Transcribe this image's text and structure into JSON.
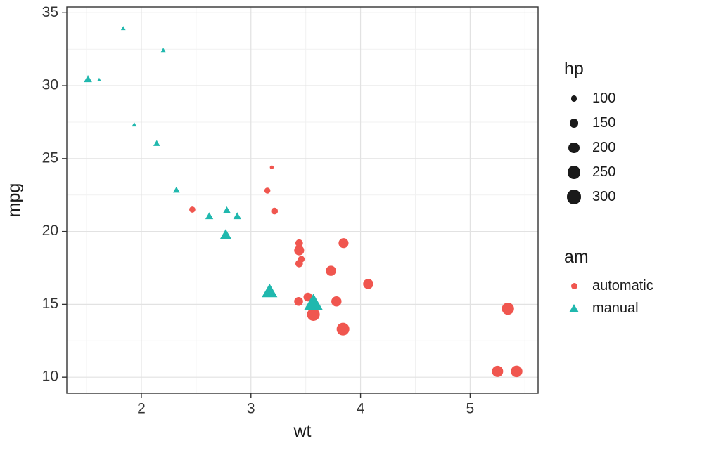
{
  "chart_data": {
    "type": "scatter",
    "title": "",
    "xlabel": "wt",
    "ylabel": "mpg",
    "xlim": [
      1.32,
      5.62
    ],
    "ylim": [
      8.9,
      35.4
    ],
    "x_ticks": [
      2,
      3,
      4,
      5
    ],
    "y_ticks": [
      10,
      15,
      20,
      25,
      30,
      35
    ],
    "grid": true,
    "colors": {
      "automatic": "#F0564F",
      "manual": "#20B8AE",
      "grid_major": "#E2E2E2",
      "grid_minor": "#F1F1F1",
      "panel_border": "#333333",
      "tick_label": "#333333"
    },
    "size_domain": [
      52,
      335
    ],
    "size_legend": {
      "title": "hp",
      "values": [
        100,
        150,
        200,
        250,
        300
      ]
    },
    "color_legend": {
      "title": "am",
      "entries": [
        {
          "label": "automatic",
          "shape": "circle",
          "color": "#F0564F"
        },
        {
          "label": "manual",
          "shape": "triangle",
          "color": "#20B8AE"
        }
      ]
    },
    "series": [
      {
        "name": "automatic",
        "shape": "circle",
        "color": "#F0564F",
        "points": [
          {
            "wt": 3.215,
            "mpg": 21.4,
            "hp": 110
          },
          {
            "wt": 3.44,
            "mpg": 18.7,
            "hp": 175
          },
          {
            "wt": 3.46,
            "mpg": 18.1,
            "hp": 105
          },
          {
            "wt": 3.57,
            "mpg": 14.3,
            "hp": 245
          },
          {
            "wt": 3.19,
            "mpg": 24.4,
            "hp": 62
          },
          {
            "wt": 3.15,
            "mpg": 22.8,
            "hp": 95
          },
          {
            "wt": 3.44,
            "mpg": 19.2,
            "hp": 123
          },
          {
            "wt": 3.44,
            "mpg": 17.8,
            "hp": 123
          },
          {
            "wt": 4.07,
            "mpg": 16.4,
            "hp": 180
          },
          {
            "wt": 3.73,
            "mpg": 17.3,
            "hp": 180
          },
          {
            "wt": 3.78,
            "mpg": 15.2,
            "hp": 180
          },
          {
            "wt": 5.25,
            "mpg": 10.4,
            "hp": 205
          },
          {
            "wt": 5.424,
            "mpg": 10.4,
            "hp": 215
          },
          {
            "wt": 5.345,
            "mpg": 14.7,
            "hp": 230
          },
          {
            "wt": 2.465,
            "mpg": 21.5,
            "hp": 97
          },
          {
            "wt": 3.52,
            "mpg": 15.5,
            "hp": 150
          },
          {
            "wt": 3.435,
            "mpg": 15.2,
            "hp": 150
          },
          {
            "wt": 3.84,
            "mpg": 13.3,
            "hp": 245
          },
          {
            "wt": 3.845,
            "mpg": 19.2,
            "hp": 175
          }
        ]
      },
      {
        "name": "manual",
        "shape": "triangle",
        "color": "#20B8AE",
        "points": [
          {
            "wt": 2.62,
            "mpg": 21.0,
            "hp": 110
          },
          {
            "wt": 2.875,
            "mpg": 21.0,
            "hp": 110
          },
          {
            "wt": 2.32,
            "mpg": 22.8,
            "hp": 93
          },
          {
            "wt": 2.2,
            "mpg": 32.4,
            "hp": 66
          },
          {
            "wt": 1.615,
            "mpg": 30.4,
            "hp": 52
          },
          {
            "wt": 1.835,
            "mpg": 33.9,
            "hp": 65
          },
          {
            "wt": 1.935,
            "mpg": 27.3,
            "hp": 66
          },
          {
            "wt": 2.14,
            "mpg": 26.0,
            "hp": 91
          },
          {
            "wt": 1.513,
            "mpg": 30.4,
            "hp": 113
          },
          {
            "wt": 3.17,
            "mpg": 15.8,
            "hp": 264
          },
          {
            "wt": 2.77,
            "mpg": 19.7,
            "hp": 175
          },
          {
            "wt": 3.57,
            "mpg": 15.0,
            "hp": 335
          },
          {
            "wt": 2.78,
            "mpg": 21.4,
            "hp": 109
          }
        ]
      }
    ]
  }
}
